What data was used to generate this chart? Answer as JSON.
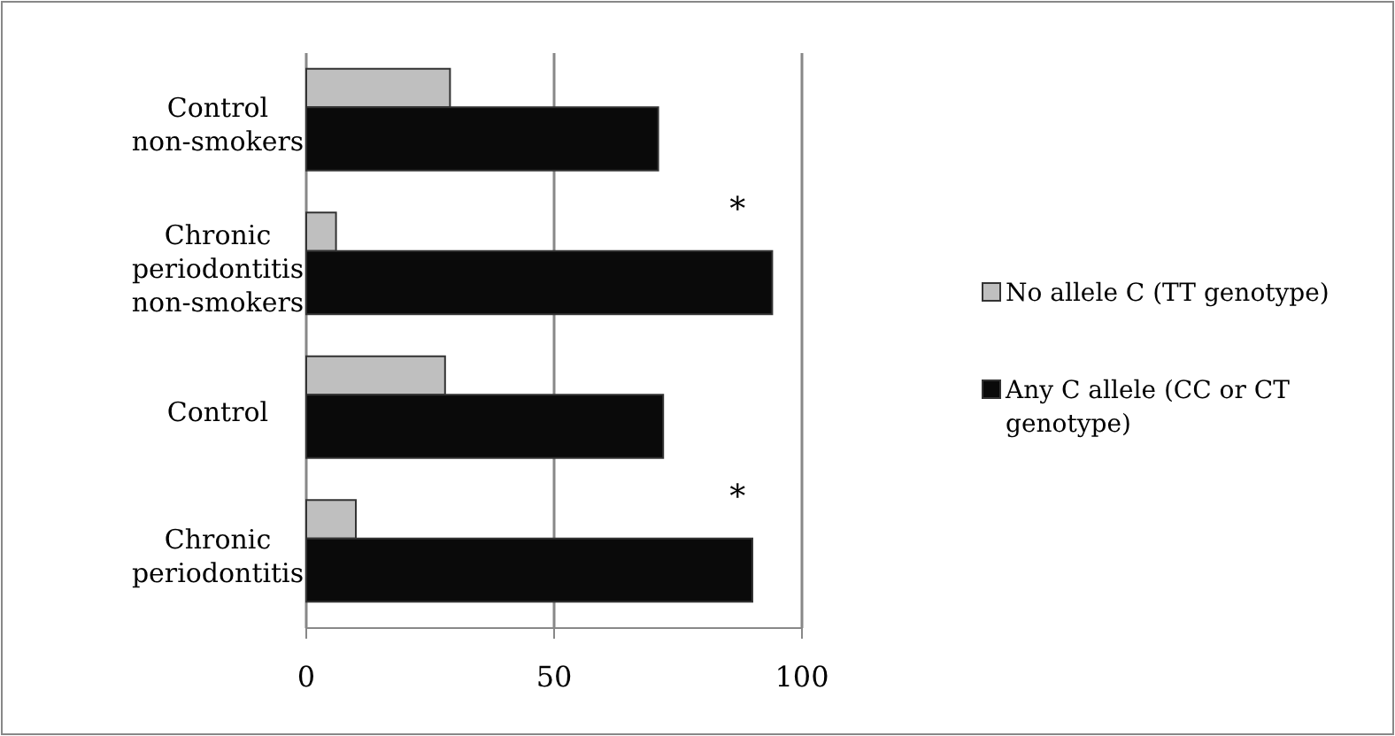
{
  "chart_data": {
    "type": "bar",
    "orientation": "horizontal",
    "categories": [
      "Control non-smokers",
      "Chronic periodontitis non-smokers",
      "Control",
      "Chronic periodontitis"
    ],
    "series": [
      {
        "name": "No allele C (TT genotype)",
        "color": "#bfbfbf",
        "values": [
          29,
          6,
          28,
          10
        ]
      },
      {
        "name": "Any C allele (CC or CT genotype)",
        "color": "#0a0a0a",
        "values": [
          71,
          94,
          72,
          90
        ]
      }
    ],
    "xlim": [
      0,
      100
    ],
    "xticks": [
      0,
      50,
      100
    ],
    "grid": "x",
    "legend": "right",
    "annotations": [
      "*",
      "*"
    ]
  }
}
